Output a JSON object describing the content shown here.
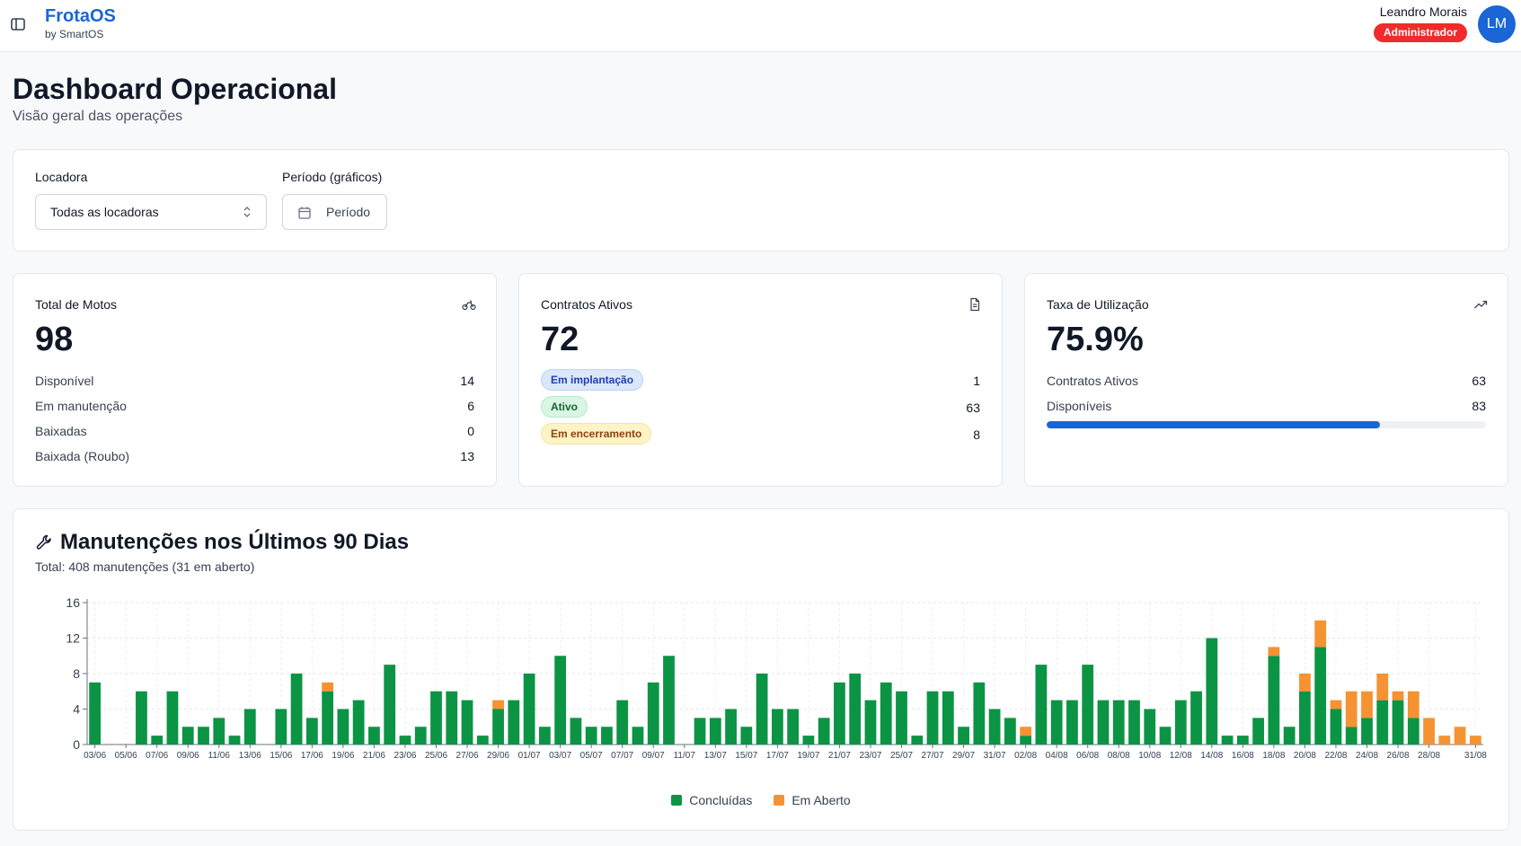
{
  "app": {
    "name": "FrotaOS",
    "by": "by SmartOS"
  },
  "user": {
    "name": "Leandro Morais",
    "role": "Administrador",
    "initials": "LM"
  },
  "page": {
    "title": "Dashboard Operacional",
    "subtitle": "Visão geral das operações"
  },
  "filters": {
    "locadora_label": "Locadora",
    "locadora_value": "Todas as locadoras",
    "periodo_label": "Período (gráficos)",
    "periodo_button": "Período"
  },
  "cards": {
    "motos": {
      "title": "Total de Motos",
      "value": "98",
      "icon": "motorcycle-icon",
      "rows": [
        {
          "label": "Disponível",
          "value": "14"
        },
        {
          "label": "Em manutenção",
          "value": "6"
        },
        {
          "label": "Baixadas",
          "value": "0"
        },
        {
          "label": "Baixada (Roubo)",
          "value": "13"
        }
      ]
    },
    "contratos": {
      "title": "Contratos Ativos",
      "value": "72",
      "icon": "document-icon",
      "rows": [
        {
          "label": "Em implantação",
          "value": "1"
        },
        {
          "label": "Ativo",
          "value": "63"
        },
        {
          "label": "Em encerramento",
          "value": "8"
        }
      ]
    },
    "taxa": {
      "title": "Taxa de Utilização",
      "value": "75.9%",
      "icon": "trending-up-icon",
      "rows": [
        {
          "label": "Contratos Ativos",
          "value": "63"
        },
        {
          "label": "Disponíveis",
          "value": "83"
        }
      ],
      "progress": 0.759
    }
  },
  "maintenance": {
    "title": "Manutenções nos Últimos 90 Dias",
    "subtitle": "Total: 408 manutenções (31 em aberto)"
  },
  "colors": {
    "primary": "#1a66d6",
    "concluidas": "#0b9444",
    "aberto": "#f59332",
    "danger": "#ef2b2b"
  },
  "chart_data": {
    "type": "bar",
    "stacked": true,
    "ylim": [
      0,
      16
    ],
    "yticks": [
      0,
      4,
      8,
      12,
      16
    ],
    "categories": [
      "03/06",
      "04/06",
      "05/06",
      "06/06",
      "07/06",
      "08/06",
      "09/06",
      "10/06",
      "11/06",
      "12/06",
      "13/06",
      "14/06",
      "15/06",
      "16/06",
      "17/06",
      "18/06",
      "19/06",
      "20/06",
      "21/06",
      "22/06",
      "23/06",
      "24/06",
      "25/06",
      "26/06",
      "27/06",
      "28/06",
      "29/06",
      "30/06",
      "01/07",
      "02/07",
      "03/07",
      "04/07",
      "05/07",
      "06/07",
      "07/07",
      "08/07",
      "09/07",
      "10/07",
      "11/07",
      "12/07",
      "13/07",
      "14/07",
      "15/07",
      "16/07",
      "17/07",
      "18/07",
      "19/07",
      "20/07",
      "21/07",
      "22/07",
      "23/07",
      "24/07",
      "25/07",
      "26/07",
      "27/07",
      "28/07",
      "29/07",
      "30/07",
      "31/07",
      "01/08",
      "02/08",
      "03/08",
      "04/08",
      "05/08",
      "06/08",
      "07/08",
      "08/08",
      "09/08",
      "10/08",
      "11/08",
      "12/08",
      "13/08",
      "14/08",
      "15/08",
      "16/08",
      "17/08",
      "18/08",
      "19/08",
      "20/08",
      "21/08",
      "22/08",
      "23/08",
      "24/08",
      "25/08",
      "26/08",
      "27/08",
      "28/08",
      "29/08",
      "30/08",
      "31/08"
    ],
    "tick_labels": [
      "03/06",
      "05/06",
      "07/06",
      "09/06",
      "11/06",
      "13/06",
      "15/06",
      "17/06",
      "19/06",
      "21/06",
      "23/06",
      "25/06",
      "27/06",
      "29/06",
      "01/07",
      "03/07",
      "05/07",
      "07/07",
      "09/07",
      "11/07",
      "13/07",
      "15/07",
      "17/07",
      "19/07",
      "21/07",
      "23/07",
      "25/07",
      "27/07",
      "29/07",
      "31/07",
      "02/08",
      "04/08",
      "06/08",
      "08/08",
      "10/08",
      "12/08",
      "14/08",
      "16/08",
      "18/08",
      "20/08",
      "22/08",
      "24/08",
      "26/08",
      "28/08",
      "31/08"
    ],
    "series": [
      {
        "name": "Concluídas",
        "values": [
          7,
          0,
          0,
          6,
          1,
          6,
          2,
          2,
          3,
          1,
          4,
          0,
          4,
          8,
          3,
          6,
          4,
          5,
          2,
          9,
          1,
          2,
          6,
          6,
          5,
          1,
          4,
          5,
          8,
          2,
          10,
          3,
          2,
          2,
          5,
          2,
          7,
          10,
          0,
          3,
          3,
          4,
          2,
          8,
          4,
          4,
          1,
          3,
          7,
          8,
          5,
          7,
          6,
          1,
          6,
          6,
          2,
          7,
          4,
          3,
          1,
          9,
          5,
          5,
          9,
          5,
          5,
          5,
          4,
          2,
          5,
          6,
          12,
          1,
          1,
          3,
          10,
          2,
          6,
          11,
          4,
          2,
          3,
          5,
          5,
          3,
          0,
          0,
          0,
          0
        ]
      },
      {
        "name": "Em Aberto",
        "values": [
          0,
          0,
          0,
          0,
          0,
          0,
          0,
          0,
          0,
          0,
          0,
          0,
          0,
          0,
          0,
          1,
          0,
          0,
          0,
          0,
          0,
          0,
          0,
          0,
          0,
          0,
          1,
          0,
          0,
          0,
          0,
          0,
          0,
          0,
          0,
          0,
          0,
          0,
          0,
          0,
          0,
          0,
          0,
          0,
          0,
          0,
          0,
          0,
          0,
          0,
          0,
          0,
          0,
          0,
          0,
          0,
          0,
          0,
          0,
          0,
          1,
          0,
          0,
          0,
          0,
          0,
          0,
          0,
          0,
          0,
          0,
          0,
          0,
          0,
          0,
          0,
          1,
          0,
          2,
          3,
          1,
          4,
          3,
          3,
          1,
          3,
          3,
          1,
          2,
          1
        ]
      }
    ]
  }
}
